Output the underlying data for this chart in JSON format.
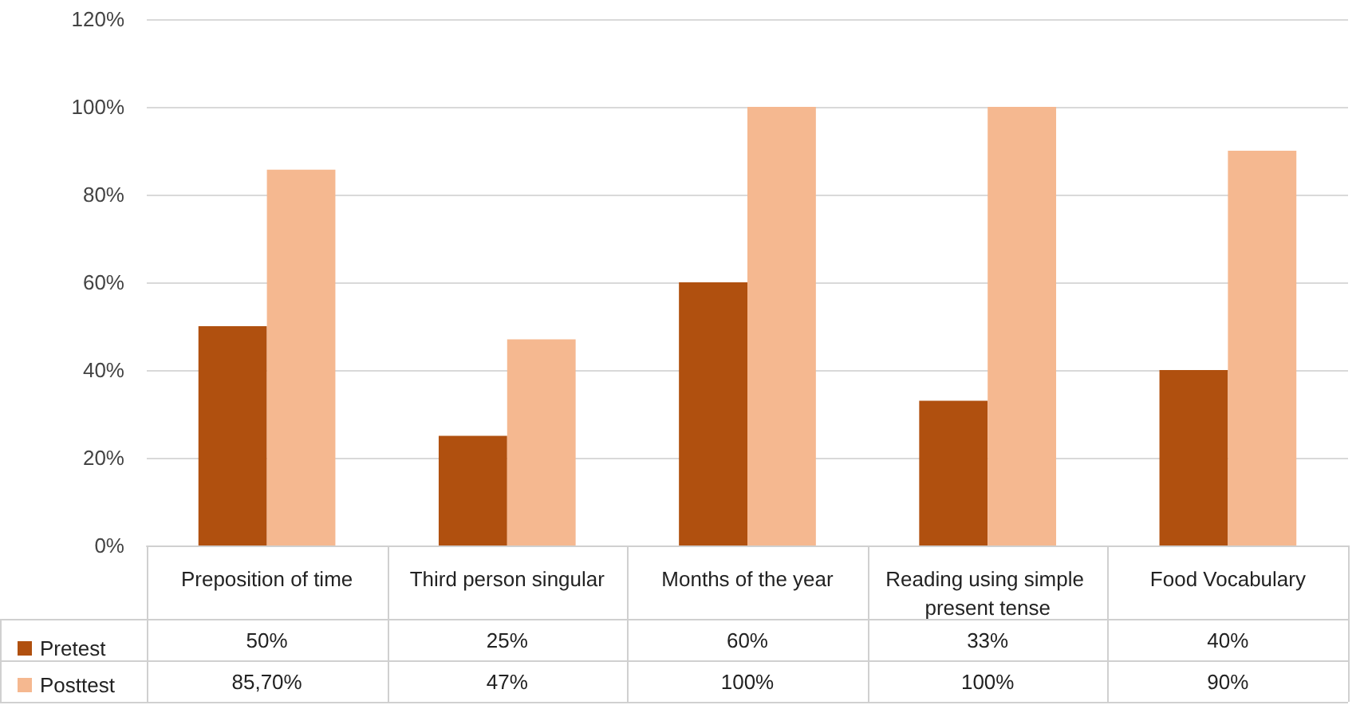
{
  "chart_data": {
    "type": "bar",
    "categories": [
      "Preposition of time",
      "Third person singular",
      "Months of the year",
      "Reading using simple present tense",
      "Food Vocabulary"
    ],
    "series": [
      {
        "name": "Pretest",
        "color": "#b0500f",
        "values": [
          50,
          25,
          60,
          33,
          40
        ],
        "value_labels": [
          "50%",
          "25%",
          "60%",
          "33%",
          "40%"
        ]
      },
      {
        "name": "Posttest",
        "color": "#f5b890",
        "values": [
          85.7,
          47,
          100,
          100,
          90
        ],
        "value_labels": [
          "85,70%",
          "47%",
          "100%",
          "100%",
          "90%"
        ]
      }
    ],
    "ylim": [
      0,
      120
    ],
    "yticks": [
      {
        "value": 0,
        "label": "0%"
      },
      {
        "value": 20,
        "label": "20%"
      },
      {
        "value": 40,
        "label": "40%"
      },
      {
        "value": 60,
        "label": "60%"
      },
      {
        "value": 80,
        "label": "80%"
      },
      {
        "value": 100,
        "label": "100%"
      },
      {
        "value": 120,
        "label": "120%"
      }
    ],
    "grid": "y",
    "legend": "bottom left"
  }
}
